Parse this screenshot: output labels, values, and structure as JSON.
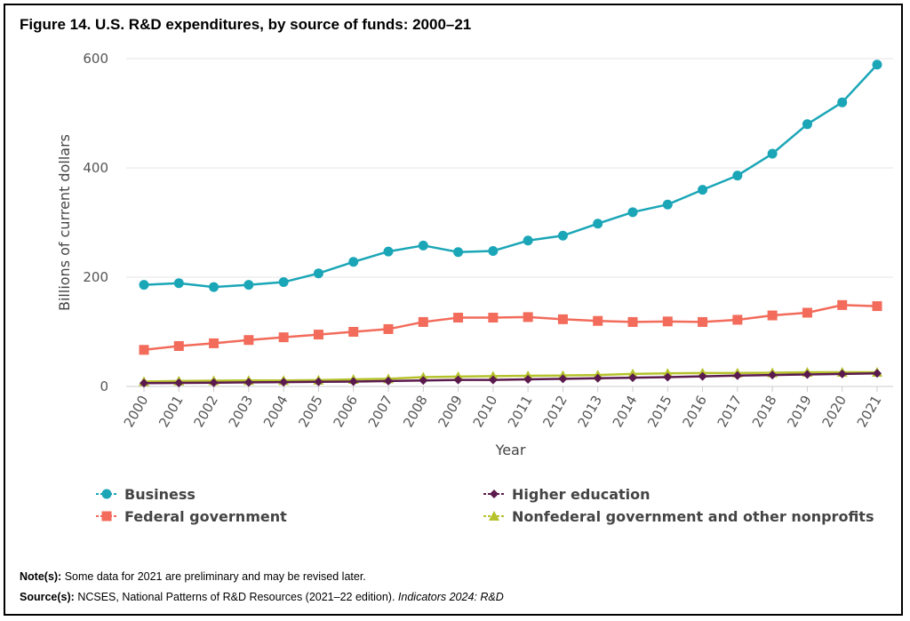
{
  "figure": {
    "title": "Figure 14. U.S. R&D expenditures, by source of funds: 2000–21"
  },
  "notes": {
    "note_label": "Note(s):",
    "note_text": "Some data for 2021 are preliminary and may be revised later.",
    "source_label": "Source(s):",
    "source_text": "NCSES, National Patterns of R&D Resources (2021–22 edition). ",
    "source_italic": "Indicators 2024: R&D"
  },
  "chart_data": {
    "type": "line",
    "title": "Figure 14. U.S. R&D expenditures, by source of funds: 2000–21",
    "xlabel": "Year",
    "ylabel": "Billions of current dollars",
    "ylim": [
      0,
      600
    ],
    "yticks": [
      0,
      200,
      400,
      600
    ],
    "grid": true,
    "legend_position": "bottom",
    "categories": [
      "2000",
      "2001",
      "2002",
      "2003",
      "2004",
      "2005",
      "2006",
      "2007",
      "2008",
      "2009",
      "2010",
      "2011",
      "2012",
      "2013",
      "2014",
      "2015",
      "2016",
      "2017",
      "2018",
      "2019",
      "2020",
      "2021"
    ],
    "series": [
      {
        "name": "Business",
        "color": "#1aa6b7",
        "marker": "circle",
        "values": [
          186,
          189,
          182,
          186,
          191,
          207,
          228,
          247,
          258,
          246,
          248,
          267,
          276,
          298,
          319,
          333,
          360,
          386,
          426,
          480,
          520,
          589
        ]
      },
      {
        "name": "Federal government",
        "color": "#f26b5b",
        "marker": "square",
        "values": [
          67,
          74,
          79,
          85,
          90,
          95,
          100,
          105,
          118,
          126,
          126,
          127,
          123,
          120,
          118,
          119,
          118,
          122,
          130,
          135,
          149,
          147
        ]
      },
      {
        "name": "Higher education",
        "color": "#5b1a4d",
        "marker": "diamond",
        "values": [
          6,
          6.5,
          7,
          7.5,
          8,
          8.5,
          9,
          10,
          11,
          12,
          12,
          13,
          14,
          15,
          16,
          17,
          18.5,
          20,
          21,
          22,
          23,
          24
        ]
      },
      {
        "name": "Nonfederal government and other nonprofits",
        "color": "#b5c22b",
        "marker": "triangle",
        "values": [
          9,
          10,
          10.5,
          11,
          11,
          11.5,
          13,
          14,
          17,
          18,
          19,
          19.5,
          20,
          21,
          23,
          24,
          24.5,
          24.5,
          25,
          26,
          26,
          26
        ]
      }
    ]
  }
}
